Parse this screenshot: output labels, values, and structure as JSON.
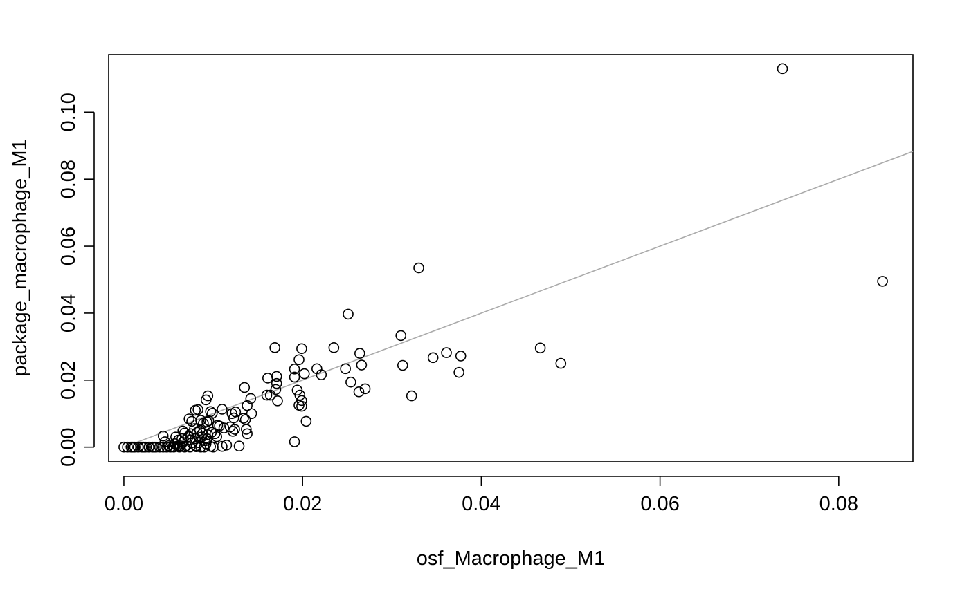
{
  "chart_data": {
    "type": "scatter",
    "xlabel": "osf_Macrophage_M1",
    "ylabel": "package_macrophage_M1",
    "xlim": [
      -0.0017,
      0.0883
    ],
    "ylim": [
      -0.0044,
      0.1172
    ],
    "x_ticks": [
      "0.00",
      "0.02",
      "0.04",
      "0.06",
      "0.08"
    ],
    "y_ticks": [
      "0.00",
      "0.02",
      "0.04",
      "0.06",
      "0.08",
      "0.10"
    ],
    "reference_line": {
      "x": [
        0,
        0.0883
      ],
      "y": [
        0,
        0.0883
      ],
      "color": "#aaaaaa"
    },
    "points": [
      [
        0.0737,
        0.113
      ],
      [
        0.0849,
        0.0495
      ],
      [
        0.033,
        0.0535
      ],
      [
        0.0251,
        0.0397
      ],
      [
        0.031,
        0.0333
      ],
      [
        0.0466,
        0.0296
      ],
      [
        0.0489,
        0.025
      ],
      [
        0.0361,
        0.0282
      ],
      [
        0.0377,
        0.0272
      ],
      [
        0.0346,
        0.0267
      ],
      [
        0.0375,
        0.0223
      ],
      [
        0.0312,
        0.0244
      ],
      [
        0.0322,
        0.0153
      ],
      [
        0.0264,
        0.028
      ],
      [
        0.0266,
        0.0245
      ],
      [
        0.0254,
        0.0194
      ],
      [
        0.027,
        0.0174
      ],
      [
        0.0263,
        0.0165
      ],
      [
        0.0248,
        0.0234
      ],
      [
        0.0235,
        0.0297
      ],
      [
        0.0216,
        0.0234
      ],
      [
        0.0221,
        0.0216
      ],
      [
        0.0199,
        0.0294
      ],
      [
        0.0196,
        0.0261
      ],
      [
        0.0202,
        0.0219
      ],
      [
        0.0191,
        0.0233
      ],
      [
        0.0191,
        0.0209
      ],
      [
        0.0194,
        0.017
      ],
      [
        0.0197,
        0.0155
      ],
      [
        0.0199,
        0.0139
      ],
      [
        0.0196,
        0.0125
      ],
      [
        0.0199,
        0.0122
      ],
      [
        0.0204,
        0.0077
      ],
      [
        0.0191,
        0.0016
      ],
      [
        0.0169,
        0.0297
      ],
      [
        0.0171,
        0.0211
      ],
      [
        0.0171,
        0.019
      ],
      [
        0.017,
        0.0172
      ],
      [
        0.0172,
        0.0138
      ],
      [
        0.0161,
        0.0206
      ],
      [
        0.016,
        0.0155
      ],
      [
        0.0164,
        0.0155
      ],
      [
        0.0135,
        0.0178
      ],
      [
        0.0142,
        0.0145
      ],
      [
        0.0138,
        0.0124
      ],
      [
        0.0143,
        0.01
      ],
      [
        0.0134,
        0.0086
      ],
      [
        0.0136,
        0.0082
      ],
      [
        0.0137,
        0.0053
      ],
      [
        0.0138,
        0.004
      ],
      [
        0.0129,
        0.0003
      ],
      [
        0.0125,
        0.0105
      ],
      [
        0.0121,
        0.01
      ],
      [
        0.0123,
        0.0087
      ],
      [
        0.0124,
        0.0053
      ],
      [
        0.0119,
        0.006
      ],
      [
        0.0122,
        0.0047
      ],
      [
        0.0112,
        0.0057
      ],
      [
        0.0115,
        0.0006
      ],
      [
        0.011,
        0.0002
      ],
      [
        0.011,
        0.0113
      ],
      [
        0.0105,
        0.0065
      ],
      [
        0.0107,
        0.0063
      ],
      [
        0.0102,
        0.004
      ],
      [
        0.0104,
        0.0031
      ],
      [
        0.0094,
        0.0153
      ],
      [
        0.0092,
        0.0141
      ],
      [
        0.0097,
        0.0106
      ],
      [
        0.0099,
        0.0101
      ],
      [
        0.0093,
        0.0075
      ],
      [
        0.0095,
        0.0079
      ],
      [
        0.0098,
        0.0044
      ],
      [
        0.0094,
        0.0037
      ],
      [
        0.0093,
        0.0025
      ],
      [
        0.0091,
        0.0019
      ],
      [
        0.0092,
        0.001
      ],
      [
        0.0097,
        0.0002
      ],
      [
        0.0083,
        0.0112
      ],
      [
        0.008,
        0.011
      ],
      [
        0.0086,
        0.008
      ],
      [
        0.0089,
        0.0071
      ],
      [
        0.0085,
        0.005
      ],
      [
        0.0082,
        0.0044
      ],
      [
        0.0088,
        0.0041
      ],
      [
        0.0087,
        0.003
      ],
      [
        0.008,
        0.0025
      ],
      [
        0.0084,
        0.0013
      ],
      [
        0.0081,
        0.0004
      ],
      [
        0.0081,
        0.0001
      ],
      [
        0.0073,
        0.0084
      ],
      [
        0.0076,
        0.0077
      ],
      [
        0.0079,
        0.0055
      ],
      [
        0.0075,
        0.004
      ],
      [
        0.0072,
        0.0031
      ],
      [
        0.0074,
        0.0022
      ],
      [
        0.0076,
        0.0013
      ],
      [
        0.007,
        0.0004
      ],
      [
        0.0066,
        0.0048
      ],
      [
        0.0068,
        0.0042
      ],
      [
        0.0065,
        0.0025
      ],
      [
        0.0066,
        0.0014
      ],
      [
        0.0063,
        0.0004
      ],
      [
        0.0058,
        0.003
      ],
      [
        0.0061,
        0.0021
      ],
      [
        0.0057,
        0.001
      ],
      [
        0.006,
        0.0003
      ],
      [
        0.0055,
        0.0001
      ],
      [
        0.0044,
        0.0033
      ],
      [
        0.0046,
        0.0016
      ],
      [
        0.005,
        0.0004
      ],
      [
        0.0052,
        0.0
      ],
      [
        0.0048,
        0.0
      ],
      [
        0.0044,
        0.0
      ],
      [
        0.004,
        0.0
      ],
      [
        0.0036,
        0.0
      ],
      [
        0.0032,
        0.0
      ],
      [
        0.0028,
        0.0
      ],
      [
        0.0024,
        0.0
      ],
      [
        0.002,
        0.0
      ],
      [
        0.0016,
        0.0
      ],
      [
        0.0012,
        0.0
      ],
      [
        0.0008,
        0.0
      ],
      [
        0.0004,
        0.0
      ],
      [
        0.0,
        0.0
      ],
      [
        0.0062,
        0.0
      ],
      [
        0.0068,
        0.0
      ],
      [
        0.0074,
        0.0
      ],
      [
        0.0086,
        0.0
      ],
      [
        0.009,
        0.0
      ],
      [
        0.01,
        0.0
      ],
      [
        0.0056,
        0.0
      ],
      [
        0.0034,
        0.0
      ],
      [
        0.0022,
        0.0
      ],
      [
        0.001,
        0.0
      ]
    ],
    "grid": false,
    "legend": "none"
  }
}
